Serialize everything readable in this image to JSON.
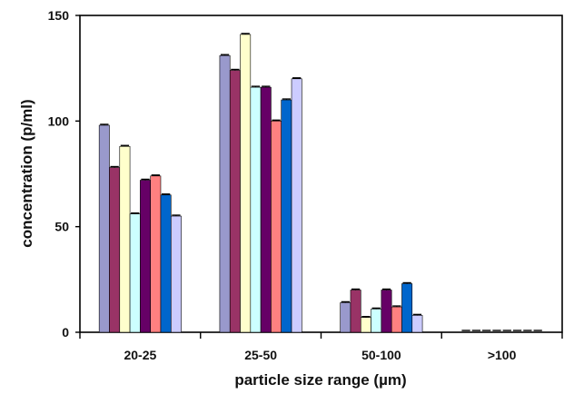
{
  "chart_data": {
    "type": "bar",
    "title": "",
    "xlabel": "particle size range (µm)",
    "ylabel": "concentration (p/ml)",
    "categories": [
      "20-25",
      "25-50",
      "50-100",
      ">100"
    ],
    "ylim": [
      0,
      150
    ],
    "yticks": [
      0,
      50,
      100,
      150
    ],
    "grid": false,
    "legend": "none",
    "error_bars": "upper cap only",
    "series": [
      {
        "color": "#9999cc",
        "values": [
          98,
          131,
          14,
          0
        ]
      },
      {
        "color": "#993366",
        "values": [
          78,
          124,
          20,
          0
        ]
      },
      {
        "color": "#ffffcc",
        "values": [
          88,
          141,
          7,
          0
        ]
      },
      {
        "color": "#ccffff",
        "values": [
          56,
          116,
          11,
          0
        ]
      },
      {
        "color": "#660066",
        "values": [
          72,
          116,
          20,
          0
        ]
      },
      {
        "color": "#ff8080",
        "values": [
          74,
          100,
          12,
          0
        ]
      },
      {
        "color": "#0066cc",
        "values": [
          65,
          110,
          23,
          0
        ]
      },
      {
        "color": "#ccccff",
        "values": [
          55,
          120,
          8,
          0
        ]
      }
    ]
  }
}
